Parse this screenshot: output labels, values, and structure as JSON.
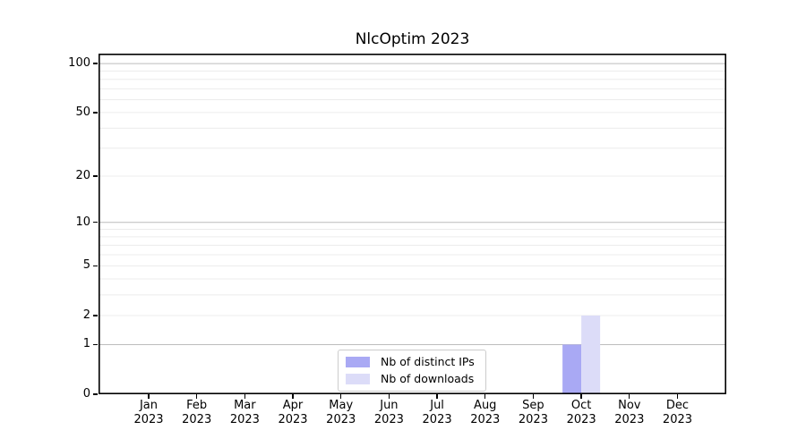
{
  "chart_data": {
    "type": "bar",
    "title": "NlcOptim 2023",
    "categories": [
      "Jan",
      "Feb",
      "Mar",
      "Apr",
      "May",
      "Jun",
      "Jul",
      "Aug",
      "Sep",
      "Oct",
      "Nov",
      "Dec"
    ],
    "category_year": "2023",
    "series": [
      {
        "name": "Nb of distinct IPs",
        "color": "#a9a9f4",
        "values": [
          0,
          0,
          0,
          0,
          0,
          0,
          0,
          0,
          0,
          1,
          0,
          0
        ]
      },
      {
        "name": "Nb of downloads",
        "color": "#dcdcf8",
        "values": [
          0,
          0,
          0,
          0,
          0,
          0,
          0,
          0,
          0,
          2,
          0,
          0
        ]
      }
    ],
    "xlabel": "",
    "ylabel": "",
    "yscale": "log1p",
    "yticks": [
      0,
      1,
      2,
      5,
      10,
      20,
      50,
      100
    ],
    "ylim": [
      0,
      115
    ],
    "grid": {
      "major_values": [
        1,
        10,
        100
      ],
      "minor_values": [
        2,
        3,
        4,
        5,
        6,
        7,
        8,
        9,
        20,
        30,
        40,
        50,
        60,
        70,
        80,
        90
      ],
      "major_color": "#bcbcbc",
      "minor_color": "#ececec"
    },
    "legend": {
      "position": "bottom-center-inside",
      "entries": [
        "Nb of distinct IPs",
        "Nb of downloads"
      ]
    },
    "spine_color": "#000000",
    "background_color": "#ffffff"
  }
}
